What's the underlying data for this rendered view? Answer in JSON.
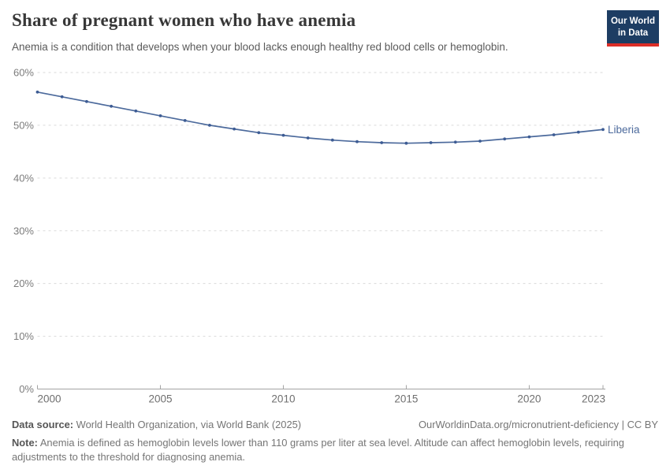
{
  "header": {
    "title": "Share of pregnant women who have anemia",
    "subtitle": "Anemia is a condition that develops when your blood lacks enough healthy red blood cells or hemoglobin.",
    "logo": {
      "line1": "Our World",
      "line2": "in Data"
    }
  },
  "chart_data": {
    "type": "line",
    "title": "Share of pregnant women who have anemia",
    "unit": "%",
    "xlim": [
      2000,
      2023
    ],
    "ylim": [
      0,
      60
    ],
    "grid": "horizontal-dashed",
    "legend_position": "end-of-line-label",
    "xticks": [
      2000,
      2005,
      2010,
      2015,
      2020,
      2023
    ],
    "yticks": [
      0,
      10,
      20,
      30,
      40,
      50,
      60
    ],
    "x": [
      2000,
      2001,
      2002,
      2003,
      2004,
      2005,
      2006,
      2007,
      2008,
      2009,
      2010,
      2011,
      2012,
      2013,
      2014,
      2015,
      2016,
      2017,
      2018,
      2019,
      2020,
      2021,
      2022,
      2023
    ],
    "series": [
      {
        "name": "Liberia",
        "color": "#4c6a9c",
        "marker_color": "#3d5c94",
        "values": [
          56.3,
          55.4,
          54.5,
          53.6,
          52.7,
          51.8,
          50.9,
          50.0,
          49.3,
          48.6,
          48.1,
          47.6,
          47.2,
          46.9,
          46.7,
          46.6,
          46.7,
          46.8,
          47.0,
          47.4,
          47.8,
          48.2,
          48.7,
          49.2
        ]
      }
    ]
  },
  "colors": {
    "accent_line": "#4c6a9c",
    "gridline": "#dadada",
    "axis": "#a3a3a3",
    "axis_label": "#7c7c7c",
    "logo_bg": "#1d3d63",
    "logo_red": "#dc2e27"
  },
  "footer": {
    "data_source_label": "Data source:",
    "data_source_text": " World Health Organization, via World Bank (2025)",
    "link_text": "OurWorldinData.org/micronutrient-deficiency | CC BY",
    "note_label": "Note:",
    "note_text": " Anemia is defined as hemoglobin levels lower than 110 grams per liter at sea level. Altitude can affect hemoglobin levels, requiring adjustments to the threshold for diagnosing anemia."
  }
}
